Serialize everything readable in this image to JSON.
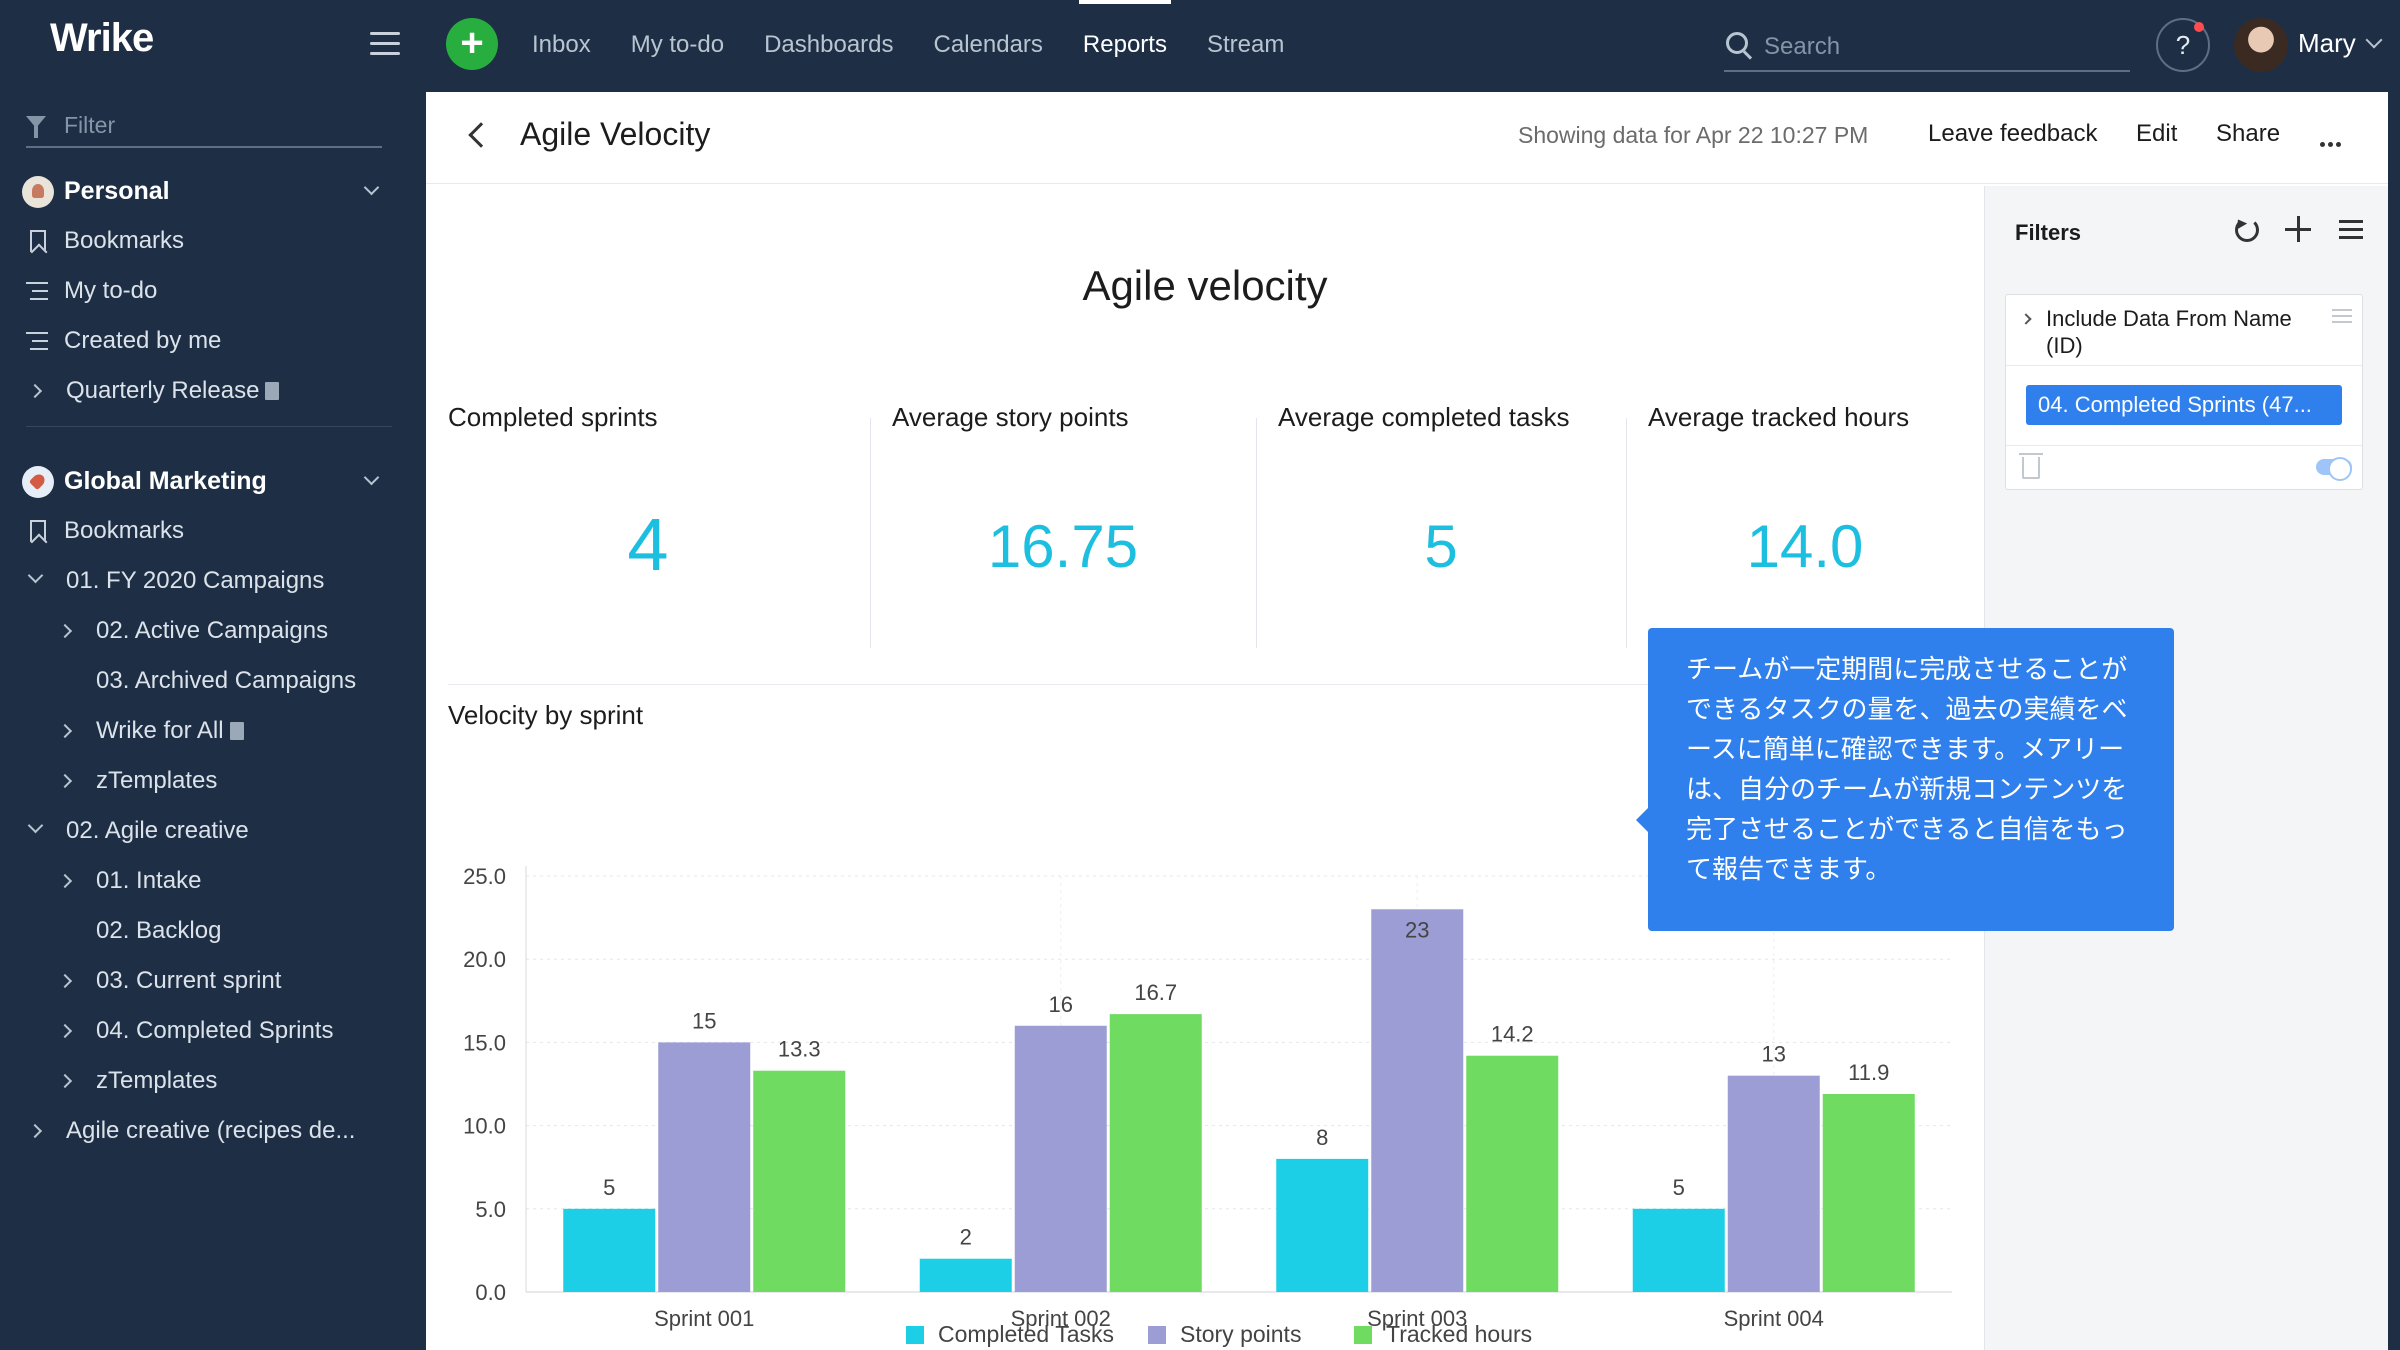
{
  "app": {
    "logo": "Wrike"
  },
  "nav": {
    "tabs": [
      {
        "label": "Inbox"
      },
      {
        "label": "My to-do"
      },
      {
        "label": "Dashboards"
      },
      {
        "label": "Calendars"
      },
      {
        "label": "Reports",
        "active": true
      },
      {
        "label": "Stream"
      }
    ]
  },
  "search": {
    "placeholder": "Search"
  },
  "help": {
    "label": "?"
  },
  "user": {
    "name": "Mary"
  },
  "sidebar": {
    "filter_placeholder": "Filter",
    "personal": {
      "title": "Personal",
      "items": [
        "Bookmarks",
        "My to-do",
        "Created by me",
        "Quarterly Release"
      ]
    },
    "global": {
      "title": "Global Marketing",
      "items": [
        "Bookmarks",
        "01. FY 2020 Campaigns",
        "02. Active Campaigns",
        "03. Archived Campaigns",
        "Wrike for All",
        "zTemplates",
        "02. Agile creative",
        "01. Intake",
        "02. Backlog",
        "03. Current sprint",
        "04. Completed Sprints",
        "zTemplates",
        "Agile creative (recipes de..."
      ]
    }
  },
  "header": {
    "title": "Agile Velocity",
    "status": "Showing data for Apr 22 10:27 PM",
    "leave_feedback": "Leave feedback",
    "edit": "Edit",
    "share": "Share"
  },
  "report": {
    "title": "Agile velocity",
    "kpis": [
      {
        "label": "Completed sprints",
        "value": "4"
      },
      {
        "label": "Average story points",
        "value": "16.75"
      },
      {
        "label": "Average completed tasks",
        "value": "5"
      },
      {
        "label": "Average tracked hours",
        "value": "14.0"
      }
    ],
    "chart_title": "Velocity by sprint"
  },
  "filters": {
    "title": "Filters",
    "card_label": "Include Data From Name (ID)",
    "chip": "04. Completed Sprints (47..."
  },
  "tooltip": {
    "text": "チームが一定期間に完成させることができるタスクの量を、過去の実績をベースに簡単に確認できます。メアリーは、自分のチームが新規コンテンツを完了させることができると自信をもって報告できます。"
  },
  "chart_data": {
    "type": "bar",
    "title": "Velocity by sprint",
    "categories": [
      "Sprint 001",
      "Sprint 002",
      "Sprint 003",
      "Sprint 004"
    ],
    "series": [
      {
        "name": "Completed Tasks",
        "values": [
          5,
          2,
          8,
          5
        ],
        "labels": [
          "5",
          "2",
          "8",
          "5"
        ],
        "color": "#1ccfe6"
      },
      {
        "name": "Story points",
        "values": [
          15,
          16,
          23,
          13
        ],
        "labels": [
          "15",
          "16",
          "23",
          "13"
        ],
        "color": "#9b9dd4"
      },
      {
        "name": "Tracked hours",
        "values": [
          13.3,
          16.7,
          14.2,
          11.9
        ],
        "labels": [
          "13.3",
          "16.7",
          "14.2",
          "11.9"
        ],
        "color": "#6fdc61"
      }
    ],
    "ylim": [
      0,
      25
    ],
    "yticks": [
      "0.0",
      "5.0",
      "10.0",
      "15.0",
      "20.0",
      "25.0"
    ],
    "grid": true,
    "legend": "bottom"
  },
  "colors": {
    "accent": "#2f80ed",
    "kpi": "#1cbfe0",
    "sidebar_bg": "#1e2f45",
    "add_button": "#27ae3f"
  },
  "icons": [
    "search-icon",
    "menu-icon",
    "plus-icon",
    "filter-icon",
    "bookmark-icon",
    "list-icon",
    "back-icon",
    "more-icon",
    "reset-icon",
    "trash-icon"
  ]
}
